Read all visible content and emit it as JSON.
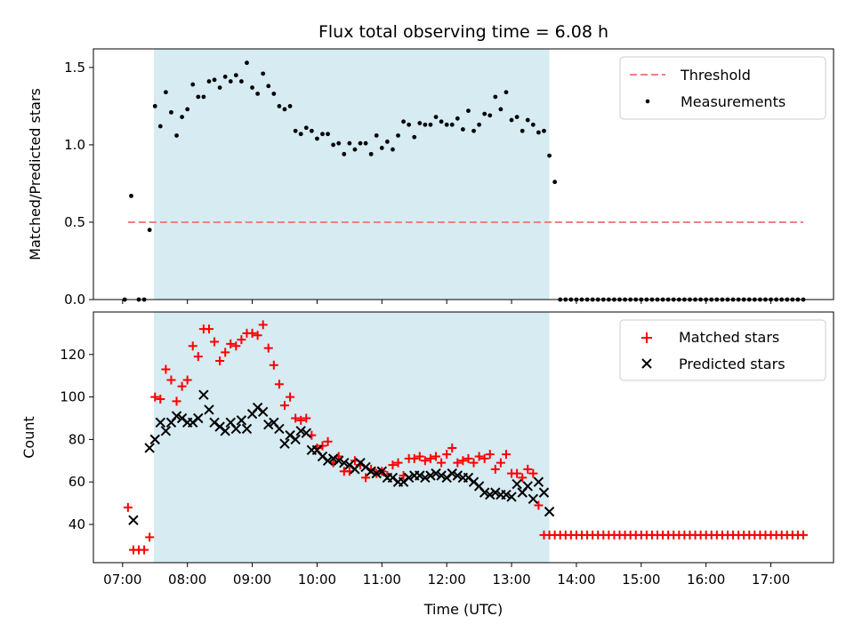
{
  "chart_data": [
    {
      "type": "scatter",
      "title": "Flux total observing time = 6.08 h",
      "xlabel": "",
      "ylabel": "Matched/Predicted stars",
      "x_ticks": [
        "07:00",
        "08:00",
        "09:00",
        "10:00",
        "11:00",
        "12:00",
        "13:00",
        "14:00",
        "15:00",
        "16:00",
        "17:00"
      ],
      "xlim": [
        "06:33",
        "17:58"
      ],
      "ylim": [
        0,
        1.62
      ],
      "y_ticks": [
        "0.0",
        "0.5",
        "1.0",
        "1.5"
      ],
      "observing_window": [
        "07:29",
        "13:35"
      ],
      "window_color": "#add8e6",
      "threshold": {
        "name": "Threshold",
        "value": 0.5,
        "from": "07:05",
        "to": "17:30",
        "color": "#f08080"
      },
      "series": [
        {
          "name": "Measurements",
          "color": "#000000",
          "marker": "dot",
          "x": [
            "07:02",
            "07:08",
            "07:15",
            "07:20",
            "07:25",
            "07:30",
            "07:35",
            "07:40",
            "07:45",
            "07:50",
            "07:55",
            "08:00",
            "08:05",
            "08:10",
            "08:15",
            "08:20",
            "08:25",
            "08:30",
            "08:35",
            "08:40",
            "08:45",
            "08:50",
            "08:55",
            "09:00",
            "09:05",
            "09:10",
            "09:15",
            "09:20",
            "09:25",
            "09:30",
            "09:35",
            "09:40",
            "09:45",
            "09:50",
            "09:55",
            "10:00",
            "10:05",
            "10:10",
            "10:15",
            "10:20",
            "10:25",
            "10:30",
            "10:35",
            "10:40",
            "10:45",
            "10:50",
            "10:55",
            "11:00",
            "11:05",
            "11:10",
            "11:15",
            "11:20",
            "11:25",
            "11:30",
            "11:35",
            "11:40",
            "11:45",
            "11:50",
            "11:55",
            "12:00",
            "12:05",
            "12:10",
            "12:15",
            "12:20",
            "12:25",
            "12:30",
            "12:35",
            "12:40",
            "12:45",
            "12:50",
            "12:55",
            "13:00",
            "13:05",
            "13:10",
            "13:15",
            "13:20",
            "13:25",
            "13:30",
            "13:35",
            "13:40",
            "13:45",
            "13:50",
            "13:55",
            "14:00",
            "14:05",
            "14:10",
            "14:15",
            "14:20",
            "14:25",
            "14:30",
            "14:35",
            "14:40",
            "14:45",
            "14:50",
            "14:55",
            "15:00",
            "15:05",
            "15:10",
            "15:15",
            "15:20",
            "15:25",
            "15:30",
            "15:35",
            "15:40",
            "15:45",
            "15:50",
            "15:55",
            "16:00",
            "16:05",
            "16:10",
            "16:15",
            "16:20",
            "16:25",
            "16:30",
            "16:35",
            "16:40",
            "16:45",
            "16:50",
            "16:55",
            "17:00",
            "17:05",
            "17:10",
            "17:15",
            "17:20",
            "17:25",
            "17:30"
          ],
          "y": [
            0.0,
            0.67,
            0.0,
            0.0,
            0.45,
            1.25,
            1.12,
            1.34,
            1.21,
            1.06,
            1.18,
            1.23,
            1.39,
            1.31,
            1.31,
            1.41,
            1.42,
            1.37,
            1.44,
            1.41,
            1.45,
            1.41,
            1.53,
            1.37,
            1.33,
            1.46,
            1.38,
            1.33,
            1.25,
            1.23,
            1.25,
            1.09,
            1.07,
            1.11,
            1.09,
            1.04,
            1.07,
            1.07,
            1.0,
            1.01,
            0.94,
            1.01,
            0.97,
            1.01,
            1.01,
            0.94,
            1.06,
            0.98,
            1.02,
            0.97,
            1.06,
            1.15,
            1.13,
            1.05,
            1.14,
            1.13,
            1.13,
            1.18,
            1.15,
            1.13,
            1.13,
            1.17,
            1.1,
            1.22,
            1.09,
            1.13,
            1.2,
            1.19,
            1.31,
            1.23,
            1.34,
            1.16,
            1.18,
            1.09,
            1.16,
            1.13,
            1.08,
            1.09,
            0.93,
            0.76,
            0.0,
            0.0,
            0.0,
            0.0,
            0.0,
            0.0,
            0.0,
            0.0,
            0.0,
            0.0,
            0.0,
            0.0,
            0.0,
            0.0,
            0.0,
            0.0,
            0.0,
            0.0,
            0.0,
            0.0,
            0.0,
            0.0,
            0.0,
            0.0,
            0.0,
            0.0,
            0.0,
            0.0,
            0.0,
            0.0,
            0.0,
            0.0,
            0.0,
            0.0,
            0.0,
            0.0,
            0.0,
            0.0,
            0.0,
            0.0,
            0.0,
            0.0,
            0.0,
            0.0,
            0.0,
            0.0
          ]
        }
      ],
      "legend_location": "upper right"
    },
    {
      "type": "scatter",
      "title": "",
      "xlabel": "Time (UTC)",
      "ylabel": "Count",
      "x_ticks": [
        "07:00",
        "08:00",
        "09:00",
        "10:00",
        "11:00",
        "12:00",
        "13:00",
        "14:00",
        "15:00",
        "16:00",
        "17:00"
      ],
      "xlim": [
        "06:33",
        "17:58"
      ],
      "ylim": [
        22,
        140
      ],
      "y_ticks": [
        "40",
        "60",
        "80",
        "100",
        "120"
      ],
      "observing_window": [
        "07:29",
        "13:35"
      ],
      "window_color": "#add8e6",
      "series": [
        {
          "name": "Matched stars",
          "color": "#ff0000",
          "marker": "plus",
          "x": [
            "07:05",
            "07:10",
            "07:15",
            "07:20",
            "07:25",
            "07:30",
            "07:35",
            "07:40",
            "07:45",
            "07:50",
            "07:55",
            "08:00",
            "08:05",
            "08:10",
            "08:15",
            "08:20",
            "08:25",
            "08:30",
            "08:35",
            "08:40",
            "08:45",
            "08:50",
            "08:55",
            "09:00",
            "09:05",
            "09:10",
            "09:15",
            "09:20",
            "09:25",
            "09:30",
            "09:35",
            "09:40",
            "09:45",
            "09:50",
            "09:55",
            "10:00",
            "10:05",
            "10:10",
            "10:15",
            "10:20",
            "10:25",
            "10:30",
            "10:35",
            "10:40",
            "10:45",
            "10:50",
            "10:55",
            "11:00",
            "11:05",
            "11:10",
            "11:15",
            "11:20",
            "11:25",
            "11:30",
            "11:35",
            "11:40",
            "11:45",
            "11:50",
            "11:55",
            "12:00",
            "12:05",
            "12:10",
            "12:15",
            "12:20",
            "12:25",
            "12:30",
            "12:35",
            "12:40",
            "12:45",
            "12:50",
            "12:55",
            "13:00",
            "13:05",
            "13:10",
            "13:15",
            "13:20",
            "13:25",
            "13:30",
            "13:35",
            "13:40",
            "13:45",
            "13:50",
            "13:55",
            "14:00",
            "14:05",
            "14:10",
            "14:15",
            "14:20",
            "14:25",
            "14:30",
            "14:35",
            "14:40",
            "14:45",
            "14:50",
            "14:55",
            "15:00",
            "15:05",
            "15:10",
            "15:15",
            "15:20",
            "15:25",
            "15:30",
            "15:35",
            "15:40",
            "15:45",
            "15:50",
            "15:55",
            "16:00",
            "16:05",
            "16:10",
            "16:15",
            "16:20",
            "16:25",
            "16:30",
            "16:35",
            "16:40",
            "16:45",
            "16:50",
            "16:55",
            "17:00",
            "17:05",
            "17:10",
            "17:15",
            "17:20",
            "17:25",
            "17:30"
          ],
          "y": [
            48,
            28,
            28,
            28,
            34,
            100,
            99,
            113,
            108,
            98,
            105,
            108,
            124,
            119,
            132,
            132,
            126,
            117,
            121,
            125,
            124,
            127,
            130,
            130,
            129,
            134,
            123,
            115,
            106,
            96,
            100,
            90,
            89,
            90,
            82,
            76,
            77,
            79,
            69,
            72,
            65,
            65,
            70,
            68,
            62,
            66,
            64,
            65,
            63,
            68,
            69,
            63,
            71,
            71,
            72,
            70,
            71,
            72,
            69,
            73,
            76,
            69,
            70,
            71,
            69,
            72,
            71,
            73,
            66,
            69,
            73,
            64,
            64,
            62,
            66,
            64,
            49,
            35,
            35,
            35,
            35,
            35,
            35,
            35,
            35,
            35,
            35,
            35,
            35,
            35,
            35,
            35,
            35,
            35,
            35,
            35,
            35,
            35,
            35,
            35,
            35,
            35,
            35,
            35,
            35,
            35,
            35,
            35,
            35,
            35,
            35,
            35,
            35,
            35,
            35,
            35,
            35,
            35,
            35,
            35,
            35,
            35,
            35,
            35,
            35,
            35
          ]
        },
        {
          "name": "Predicted stars",
          "color": "#000000",
          "marker": "x",
          "x": [
            "07:10",
            "07:25",
            "07:30",
            "07:35",
            "07:40",
            "07:45",
            "07:50",
            "07:55",
            "08:00",
            "08:05",
            "08:10",
            "08:15",
            "08:20",
            "08:25",
            "08:30",
            "08:35",
            "08:40",
            "08:45",
            "08:50",
            "08:55",
            "09:00",
            "09:05",
            "09:10",
            "09:15",
            "09:20",
            "09:25",
            "09:30",
            "09:35",
            "09:40",
            "09:45",
            "09:50",
            "09:55",
            "10:00",
            "10:05",
            "10:10",
            "10:15",
            "10:20",
            "10:25",
            "10:30",
            "10:35",
            "10:40",
            "10:45",
            "10:50",
            "10:55",
            "11:00",
            "11:05",
            "11:10",
            "11:15",
            "11:20",
            "11:25",
            "11:30",
            "11:35",
            "11:40",
            "11:45",
            "11:50",
            "11:55",
            "12:00",
            "12:05",
            "12:10",
            "12:15",
            "12:20",
            "12:25",
            "12:30",
            "12:35",
            "12:40",
            "12:45",
            "12:50",
            "12:55",
            "13:00",
            "13:05",
            "13:10",
            "13:15",
            "13:20",
            "13:25",
            "13:30",
            "13:35"
          ],
          "y": [
            42,
            76,
            80,
            88,
            84,
            88,
            91,
            90,
            88,
            88,
            90,
            101,
            94,
            88,
            86,
            84,
            88,
            85,
            89,
            85,
            92,
            95,
            93,
            87,
            88,
            85,
            78,
            82,
            80,
            84,
            83,
            75,
            75,
            72,
            70,
            71,
            70,
            69,
            68,
            66,
            69,
            67,
            65,
            64,
            65,
            62,
            62,
            60,
            60,
            62,
            63,
            63,
            62,
            63,
            64,
            63,
            62,
            64,
            63,
            62,
            62,
            60,
            58,
            55,
            54,
            55,
            54,
            54,
            53,
            59,
            55,
            58,
            52,
            60,
            55,
            46
          ]
        }
      ],
      "legend_location": "upper right"
    }
  ]
}
